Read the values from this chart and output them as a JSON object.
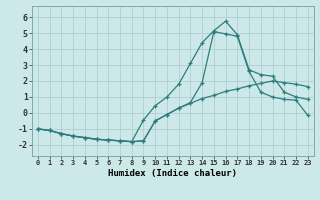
{
  "xlabel": "Humidex (Indice chaleur)",
  "background_color": "#cde8e8",
  "grid_color": "#aacccc",
  "line_color": "#2e7d7d",
  "xlim": [
    -0.5,
    23.5
  ],
  "ylim": [
    -2.7,
    6.7
  ],
  "xticks": [
    0,
    1,
    2,
    3,
    4,
    5,
    6,
    7,
    8,
    9,
    10,
    11,
    12,
    13,
    14,
    15,
    16,
    17,
    18,
    19,
    20,
    21,
    22,
    23
  ],
  "yticks": [
    -2,
    -1,
    0,
    1,
    2,
    3,
    4,
    5,
    6
  ],
  "series": [
    {
      "x": [
        0,
        1,
        2,
        3,
        4,
        5,
        6,
        7,
        8,
        9,
        10,
        11,
        12,
        13,
        14,
        15,
        16,
        17,
        18,
        19,
        20,
        21,
        22,
        23
      ],
      "y": [
        -1.0,
        -1.1,
        -1.3,
        -1.45,
        -1.55,
        -1.65,
        -1.7,
        -1.75,
        -1.8,
        -1.75,
        -0.5,
        -0.1,
        0.3,
        0.6,
        0.9,
        1.1,
        1.35,
        1.5,
        1.7,
        1.85,
        2.0,
        1.9,
        1.8,
        1.65
      ]
    },
    {
      "x": [
        0,
        1,
        2,
        3,
        4,
        5,
        6,
        7,
        8,
        9,
        10,
        11,
        12,
        13,
        14,
        15,
        16,
        17,
        18,
        19,
        20,
        21,
        22,
        23
      ],
      "y": [
        -1.0,
        -1.1,
        -1.3,
        -1.45,
        -1.55,
        -1.65,
        -1.7,
        -1.75,
        -1.8,
        -0.45,
        0.45,
        1.0,
        1.8,
        3.1,
        4.4,
        5.15,
        5.75,
        4.9,
        2.7,
        2.4,
        2.3,
        1.3,
        1.0,
        0.85
      ]
    },
    {
      "x": [
        0,
        1,
        2,
        3,
        4,
        5,
        6,
        7,
        8,
        9,
        10,
        11,
        12,
        13,
        14,
        15,
        16,
        17,
        18,
        19,
        20,
        21,
        22,
        23
      ],
      "y": [
        -1.0,
        -1.1,
        -1.3,
        -1.45,
        -1.55,
        -1.65,
        -1.7,
        -1.75,
        -1.8,
        -1.75,
        -0.5,
        -0.1,
        0.3,
        0.65,
        1.9,
        5.1,
        4.95,
        4.8,
        2.6,
        1.3,
        1.0,
        0.85,
        0.8,
        -0.15
      ]
    }
  ]
}
